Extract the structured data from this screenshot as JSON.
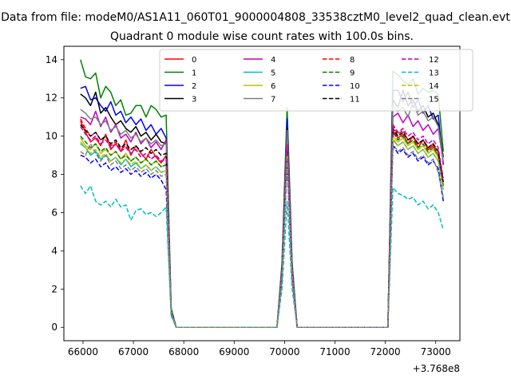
{
  "figure": {
    "suptitle": "Data from file: modeM0/AS1A11_060T01_9000004808_33538cztM0_level2_quad_clean.evt",
    "title": "Quadrant 0 module wise count rates with 100.0s bins."
  },
  "chart_data": {
    "type": "line",
    "title": "Quadrant 0 module wise count rates with 100.0s bins.",
    "xlabel": "",
    "ylabel": "",
    "x_offset_label": "+3.768e8",
    "x_offset": 376800000,
    "xlim": [
      65620,
      73480
    ],
    "ylim": [
      -0.7,
      14.7
    ],
    "xticks": [
      66000,
      67000,
      68000,
      69000,
      70000,
      71000,
      72000,
      73000
    ],
    "yticks": [
      0,
      2,
      4,
      6,
      8,
      10,
      12,
      14
    ],
    "grid": false,
    "legend_placement": "upper-center",
    "x": [
      65950,
      66050,
      66150,
      66250,
      66350,
      66450,
      66550,
      66650,
      66750,
      66850,
      66950,
      67050,
      67150,
      67250,
      67350,
      67450,
      67550,
      67650,
      67750,
      67850,
      69850,
      69950,
      70050,
      70150,
      70250,
      72050,
      72150,
      72250,
      72350,
      72450,
      72550,
      72650,
      72750,
      72850,
      72950,
      73050,
      73150
    ],
    "series": [
      {
        "name": "0",
        "color": "#ff0000",
        "linestyle": "solid",
        "values": [
          10.8,
          10.2,
          9.7,
          9.9,
          9.5,
          10.1,
          9.3,
          9.6,
          9.2,
          9.8,
          9.0,
          9.5,
          9.1,
          8.8,
          9.3,
          8.9,
          8.6,
          9.0,
          0.9,
          0,
          0,
          3.0,
          10.2,
          3.0,
          0,
          0,
          10.3,
          9.9,
          10.1,
          9.6,
          10.0,
          9.4,
          9.8,
          9.3,
          9.5,
          8.9,
          7.4
        ]
      },
      {
        "name": "1",
        "color": "#008000",
        "linestyle": "solid",
        "values": [
          14.0,
          13.1,
          13.0,
          13.3,
          12.0,
          12.6,
          12.3,
          11.6,
          11.9,
          11.1,
          11.2,
          11.6,
          11.6,
          11.0,
          11.6,
          11.4,
          11.0,
          11.1,
          1.0,
          0,
          0,
          3.4,
          11.5,
          3.4,
          0,
          0,
          13.4,
          13.2,
          12.9,
          12.7,
          13.0,
          12.2,
          12.5,
          12.3,
          12.4,
          12.2,
          9.2
        ]
      },
      {
        "name": "2",
        "color": "#0000ff",
        "linestyle": "solid",
        "values": [
          12.5,
          12.6,
          11.9,
          12.0,
          11.6,
          11.3,
          11.8,
          11.1,
          11.3,
          10.7,
          11.0,
          10.6,
          10.9,
          10.3,
          10.6,
          10.1,
          10.4,
          9.9,
          0.9,
          0,
          0,
          3.2,
          10.9,
          3.2,
          0,
          0,
          12.4,
          12.4,
          11.8,
          12.3,
          11.5,
          11.9,
          11.2,
          11.6,
          10.9,
          11.1,
          8.5
        ]
      },
      {
        "name": "3",
        "color": "#000000",
        "linestyle": "solid",
        "values": [
          12.2,
          12.0,
          11.6,
          12.3,
          11.2,
          11.5,
          11.0,
          10.6,
          10.8,
          10.4,
          10.2,
          10.5,
          10.0,
          10.2,
          9.8,
          10.1,
          9.7,
          9.6,
          0.9,
          0,
          0,
          3.0,
          10.4,
          3.0,
          0,
          0,
          11.9,
          11.5,
          12.4,
          11.6,
          11.9,
          11.3,
          11.6,
          11.0,
          11.2,
          10.6,
          8.9
        ]
      },
      {
        "name": "4",
        "color": "#bf00bf",
        "linestyle": "solid",
        "values": [
          11.0,
          10.9,
          10.6,
          11.3,
          10.5,
          11.0,
          10.2,
          10.6,
          9.9,
          10.1,
          9.7,
          10.2,
          9.6,
          9.9,
          9.4,
          9.7,
          9.3,
          9.8,
          0.9,
          0,
          0,
          3.0,
          10.0,
          3.0,
          0,
          0,
          11.0,
          11.2,
          10.7,
          11.1,
          10.5,
          10.8,
          10.3,
          10.6,
          10.1,
          10.4,
          8.6
        ]
      },
      {
        "name": "5",
        "color": "#00bfbf",
        "linestyle": "solid",
        "values": [
          9.6,
          9.4,
          9.0,
          9.2,
          8.8,
          9.0,
          8.7,
          8.9,
          8.5,
          8.8,
          8.4,
          8.6,
          8.3,
          8.5,
          8.2,
          8.4,
          8.1,
          8.2,
          0.8,
          0,
          0,
          2.7,
          9.0,
          2.7,
          0,
          0,
          9.8,
          9.5,
          9.7,
          9.3,
          9.5,
          9.1,
          9.3,
          8.9,
          9.1,
          8.7,
          7.2
        ]
      },
      {
        "name": "6",
        "color": "#bfbf00",
        "linestyle": "solid",
        "values": [
          9.9,
          9.5,
          9.3,
          9.6,
          9.1,
          9.3,
          9.0,
          9.2,
          8.8,
          9.1,
          8.7,
          8.9,
          8.6,
          8.8,
          8.5,
          8.7,
          8.4,
          8.5,
          0.8,
          0,
          0,
          2.8,
          9.2,
          2.8,
          0,
          0,
          10.0,
          9.7,
          9.9,
          9.5,
          9.7,
          9.3,
          9.5,
          9.1,
          9.3,
          8.9,
          7.6
        ]
      },
      {
        "name": "7",
        "color": "#808080",
        "linestyle": "solid",
        "values": [
          11.4,
          11.2,
          10.9,
          11.0,
          10.6,
          10.8,
          10.3,
          10.5,
          10.1,
          10.3,
          9.9,
          10.1,
          9.7,
          9.9,
          9.6,
          9.8,
          9.5,
          9.6,
          0.9,
          0,
          0,
          3.1,
          10.3,
          3.1,
          0,
          0,
          11.6,
          11.3,
          11.5,
          11.0,
          11.8,
          11.1,
          11.3,
          10.8,
          11.0,
          10.5,
          8.7
        ]
      },
      {
        "name": "8",
        "color": "#ff0000",
        "linestyle": "dashed",
        "values": [
          10.9,
          10.4,
          10.0,
          10.2,
          9.8,
          10.0,
          9.5,
          9.7,
          9.3,
          9.5,
          9.1,
          9.3,
          8.9,
          9.1,
          8.8,
          9.0,
          8.7,
          8.8,
          0.8,
          0,
          0,
          2.9,
          9.6,
          2.9,
          0,
          0,
          10.5,
          10.1,
          10.3,
          9.8,
          10.0,
          9.6,
          9.8,
          9.4,
          9.6,
          9.1,
          7.5
        ]
      },
      {
        "name": "9",
        "color": "#008000",
        "linestyle": "dashed",
        "values": [
          10.0,
          9.7,
          9.4,
          9.6,
          9.2,
          9.4,
          9.0,
          9.2,
          8.8,
          9.0,
          8.7,
          8.9,
          8.6,
          8.8,
          8.5,
          8.7,
          8.4,
          8.5,
          0.8,
          0,
          0,
          2.8,
          9.4,
          2.8,
          0,
          0,
          10.2,
          9.8,
          10.0,
          9.6,
          9.8,
          9.4,
          9.6,
          9.2,
          9.4,
          9.0,
          7.4
        ]
      },
      {
        "name": "10",
        "color": "#0000ff",
        "linestyle": "dashed",
        "values": [
          9.0,
          8.9,
          8.6,
          8.8,
          8.4,
          8.6,
          8.2,
          8.4,
          8.1,
          8.3,
          8.0,
          8.2,
          7.9,
          8.1,
          7.8,
          8.0,
          7.7,
          7.2,
          0.7,
          0,
          0,
          2.5,
          8.6,
          2.5,
          0,
          0,
          9.5,
          9.1,
          9.3,
          8.9,
          9.1,
          8.7,
          8.9,
          8.5,
          8.7,
          8.3,
          6.6
        ]
      },
      {
        "name": "11",
        "color": "#000000",
        "linestyle": "dashed",
        "values": [
          10.6,
          10.3,
          10.0,
          10.2,
          9.8,
          10.0,
          9.6,
          9.8,
          9.4,
          9.6,
          9.3,
          9.5,
          9.2,
          9.4,
          9.1,
          9.3,
          9.0,
          9.1,
          0.9,
          0,
          0,
          2.9,
          9.4,
          2.9,
          0,
          0,
          10.4,
          10.0,
          10.2,
          9.8,
          10.0,
          9.6,
          9.8,
          9.4,
          9.6,
          9.2,
          7.6
        ]
      },
      {
        "name": "12",
        "color": "#bf00bf",
        "linestyle": "dashed",
        "values": [
          10.5,
          10.1,
          9.8,
          10.0,
          9.6,
          9.8,
          9.4,
          9.6,
          9.2,
          9.4,
          9.1,
          9.3,
          8.9,
          9.1,
          8.8,
          9.0,
          8.7,
          8.8,
          0.8,
          0,
          0,
          2.9,
          9.5,
          2.9,
          0,
          0,
          10.6,
          10.2,
          10.4,
          10.0,
          10.2,
          9.8,
          10.0,
          9.6,
          9.8,
          9.4,
          7.8
        ]
      },
      {
        "name": "13",
        "color": "#00bfbf",
        "linestyle": "dashed",
        "values": [
          7.4,
          7.0,
          7.4,
          6.6,
          6.4,
          6.6,
          6.3,
          6.7,
          6.3,
          6.4,
          5.6,
          6.1,
          6.2,
          5.9,
          6.0,
          5.8,
          6.0,
          6.3,
          0.6,
          0,
          0,
          2.0,
          6.6,
          2.0,
          0,
          0,
          7.3,
          7.0,
          6.9,
          6.7,
          6.8,
          6.4,
          6.6,
          6.2,
          6.4,
          6.0,
          5.1
        ]
      },
      {
        "name": "14",
        "color": "#bfbf00",
        "linestyle": "dashed",
        "values": [
          9.7,
          9.4,
          9.1,
          9.3,
          8.9,
          9.1,
          8.7,
          8.9,
          8.6,
          8.8,
          8.5,
          8.7,
          8.3,
          8.5,
          8.2,
          8.4,
          8.1,
          8.2,
          0.8,
          0,
          0,
          2.7,
          9.0,
          2.7,
          0,
          0,
          9.9,
          9.5,
          9.7,
          9.3,
          9.5,
          9.1,
          9.3,
          8.9,
          9.1,
          8.7,
          7.2
        ]
      },
      {
        "name": "15",
        "color": "#808080",
        "linestyle": "dashed",
        "values": [
          9.2,
          9.0,
          9.6,
          9.1,
          8.7,
          9.0,
          8.5,
          8.7,
          8.3,
          8.5,
          8.2,
          8.4,
          8.1,
          8.3,
          8.0,
          8.2,
          7.9,
          8.0,
          0.8,
          0,
          0,
          2.6,
          8.8,
          2.6,
          0,
          0,
          9.6,
          9.2,
          9.4,
          9.0,
          9.2,
          8.8,
          9.0,
          8.6,
          8.8,
          8.1,
          6.8
        ]
      }
    ]
  }
}
